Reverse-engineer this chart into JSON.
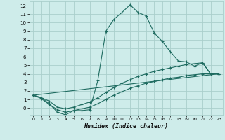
{
  "xlabel": "Humidex (Indice chaleur)",
  "background_color": "#ceecea",
  "grid_color": "#aacfcc",
  "line_color": "#1e6b60",
  "x_ticks": [
    0,
    1,
    2,
    3,
    4,
    5,
    6,
    7,
    8,
    9,
    10,
    11,
    12,
    13,
    14,
    15,
    16,
    17,
    18,
    19,
    20,
    21,
    22,
    23
  ],
  "y_ticks": [
    0,
    1,
    2,
    3,
    4,
    5,
    6,
    7,
    8,
    9,
    10,
    11,
    12
  ],
  "ylim": [
    -0.8,
    12.5
  ],
  "xlim": [
    -0.5,
    23.5
  ],
  "series1_x": [
    0,
    1,
    2,
    3,
    4,
    5,
    6,
    7,
    8,
    9,
    10,
    11,
    12,
    13,
    14,
    15,
    16,
    17,
    18,
    19,
    20,
    21,
    22,
    23
  ],
  "series1_y": [
    1.5,
    1.2,
    0.5,
    -0.5,
    -0.8,
    -0.3,
    -0.3,
    -0.2,
    3.2,
    9.0,
    10.4,
    11.2,
    12.1,
    11.2,
    10.8,
    8.8,
    7.8,
    6.6,
    5.5,
    5.4,
    4.9,
    5.3,
    4.0,
    4.0
  ],
  "series2_x": [
    0,
    1,
    2,
    3,
    4,
    5,
    6,
    7,
    8,
    9,
    10,
    11,
    12,
    13,
    14,
    15,
    16,
    17,
    18,
    19,
    20,
    21,
    22,
    23
  ],
  "series2_y": [
    1.5,
    1.2,
    0.8,
    0.1,
    -0.1,
    0.1,
    0.4,
    0.7,
    1.2,
    1.8,
    2.4,
    2.9,
    3.3,
    3.7,
    4.0,
    4.3,
    4.5,
    4.7,
    4.9,
    5.1,
    5.2,
    5.3,
    4.0,
    4.0
  ],
  "series3_x": [
    0,
    1,
    2,
    3,
    4,
    5,
    6,
    7,
    8,
    9,
    10,
    11,
    12,
    13,
    14,
    15,
    16,
    17,
    18,
    19,
    20,
    21,
    22,
    23
  ],
  "series3_y": [
    1.5,
    1.1,
    0.4,
    -0.2,
    -0.5,
    -0.3,
    -0.1,
    0.1,
    0.5,
    1.0,
    1.5,
    1.9,
    2.3,
    2.6,
    2.9,
    3.1,
    3.3,
    3.5,
    3.6,
    3.8,
    3.9,
    4.0,
    4.0,
    4.0
  ],
  "series4_x": [
    0,
    23
  ],
  "series4_y": [
    1.5,
    4.0
  ]
}
